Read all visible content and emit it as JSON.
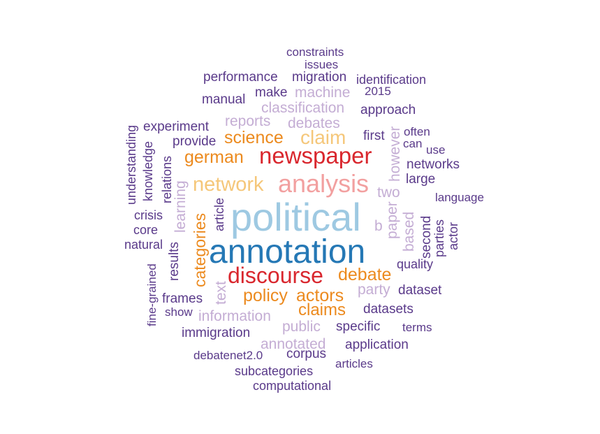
{
  "palette": {
    "dark_purple": "#5a3a8a",
    "light_purple": "#c4add4",
    "orange": "#ec8a1e",
    "light_orange": "#f5c77a",
    "red": "#d9272e",
    "pink": "#f2a0a0",
    "light_blue": "#9ec9e2",
    "dark_blue": "#2578b5"
  },
  "words": {
    "political": "political",
    "annotation": "annotation",
    "newspaper": "newspaper",
    "analysis": "analysis",
    "discourse": "discourse",
    "network": "network",
    "claim": "claim",
    "science": "science",
    "german": "german",
    "debate": "debate",
    "policy": "policy",
    "actors": "actors",
    "claims": "claims",
    "categories": "categories",
    "constraints": "constraints",
    "issues": "issues",
    "performance": "performance",
    "migration": "migration",
    "identification": "identification",
    "manual": "manual",
    "make": "make",
    "machine": "machine",
    "y2015": "2015",
    "classification": "classification",
    "approach": "approach",
    "experiment": "experiment",
    "reports": "reports",
    "debates": "debates",
    "often": "often",
    "provide": "provide",
    "first": "first",
    "can": "can",
    "use": "use",
    "networks": "networks",
    "large": "large",
    "language": "language",
    "understanding": "understanding",
    "knowledge": "knowledge",
    "relations": "relations",
    "learning": "learning",
    "however": "however",
    "two": "two",
    "crisis": "crisis",
    "article": "article",
    "paper": "paper",
    "based": "based",
    "second": "second",
    "parties": "parties",
    "actor": "actor",
    "core": "core",
    "b": "b",
    "natural": "natural",
    "results": "results",
    "quality": "quality",
    "fine_grained": "fine-grained",
    "text": "text",
    "party": "party",
    "dataset": "dataset",
    "frames": "frames",
    "show": "show",
    "information": "information",
    "datasets": "datasets",
    "immigration": "immigration",
    "public": "public",
    "specific": "specific",
    "terms": "terms",
    "annotated": "annotated",
    "application": "application",
    "debatenet": "debatenet2.0",
    "corpus": "corpus",
    "articles": "articles",
    "subcategories": "subcategories",
    "computational": "computational"
  }
}
